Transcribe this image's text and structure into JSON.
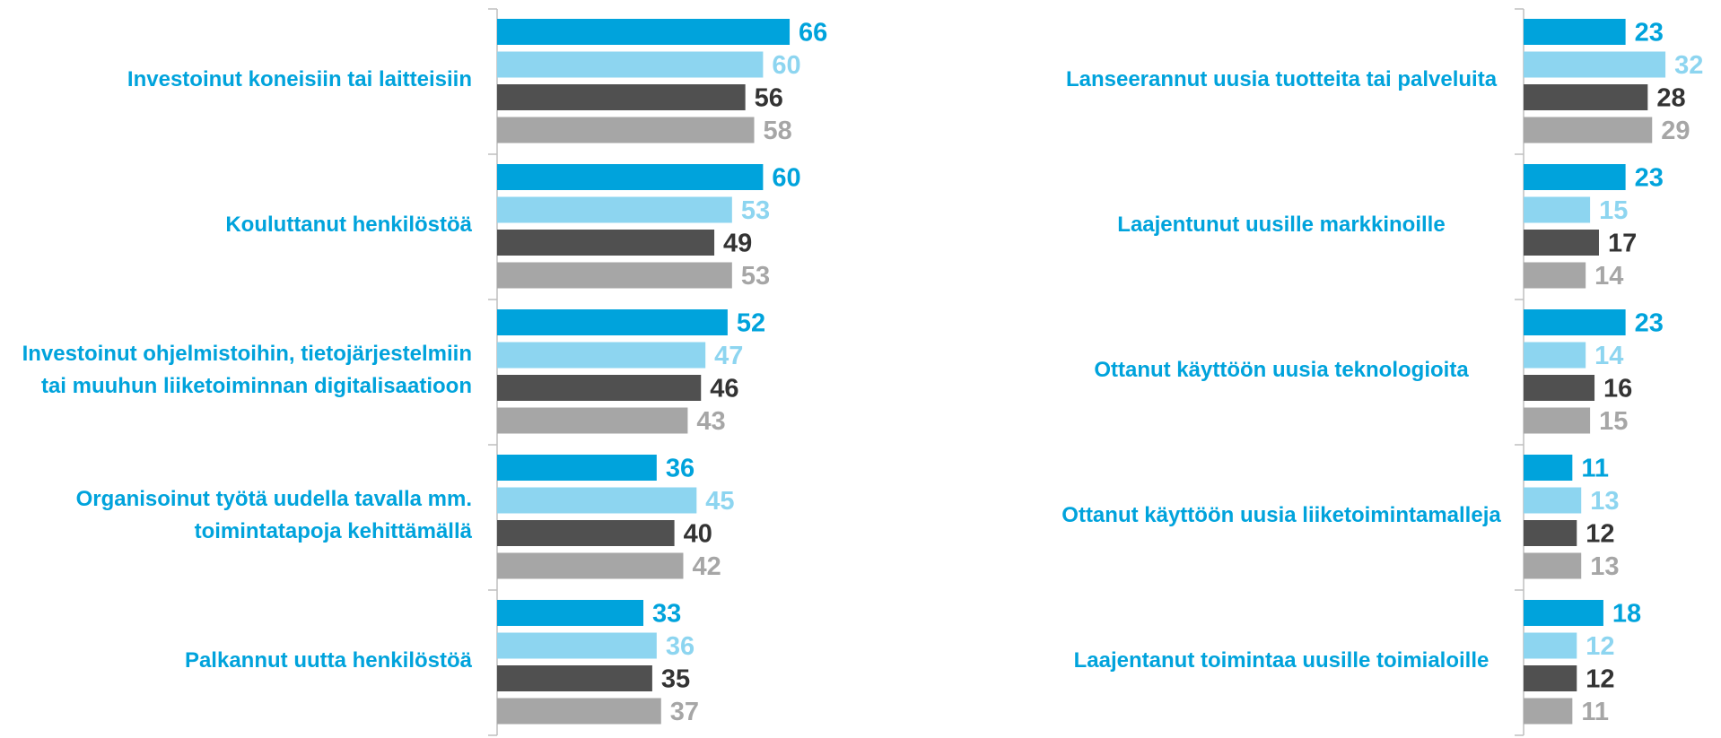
{
  "chart_data": [
    {
      "type": "bar",
      "orientation": "horizontal",
      "categories": [
        "Investoinut koneisiin tai laitteisiin",
        "Kouluttanut henkilöstöä",
        "Investoinut ohjelmistoihin, tietojärjestelmiin tai muuhun liiketoiminnan digitalisaatioon",
        "Organisoinut työtä uudella tavalla mm. toimintatapoja kehittämällä",
        "Palkannut uutta henkilöstöä"
      ],
      "xlim": [
        0,
        100
      ],
      "series": [
        {
          "color": "#00a3dc",
          "values": [
            66,
            60,
            52,
            36,
            33
          ]
        },
        {
          "color": "#8dd5f0",
          "values": [
            60,
            53,
            47,
            45,
            36
          ]
        },
        {
          "color": "#505050",
          "values": [
            56,
            49,
            46,
            40,
            35
          ]
        },
        {
          "color": "#a6a6a6",
          "values": [
            58,
            53,
            43,
            42,
            37
          ]
        }
      ]
    },
    {
      "type": "bar",
      "orientation": "horizontal",
      "categories": [
        "Lanseerannut uusia tuotteita tai palveluita",
        "Laajentunut uusille markkinoille",
        "Ottanut käyttöön uusia teknologioita",
        "Ottanut käyttöön uusia liiketoimintamalleja",
        "Laajentanut toimintaa uusille toimialoille"
      ],
      "xlim": [
        0,
        100
      ],
      "series": [
        {
          "color": "#00a3dc",
          "values": [
            23,
            23,
            23,
            11,
            18
          ]
        },
        {
          "color": "#8dd5f0",
          "values": [
            32,
            15,
            14,
            13,
            12
          ]
        },
        {
          "color": "#505050",
          "values": [
            28,
            17,
            16,
            12,
            12
          ]
        },
        {
          "color": "#a6a6a6",
          "values": [
            29,
            14,
            15,
            13,
            11
          ]
        }
      ]
    }
  ]
}
